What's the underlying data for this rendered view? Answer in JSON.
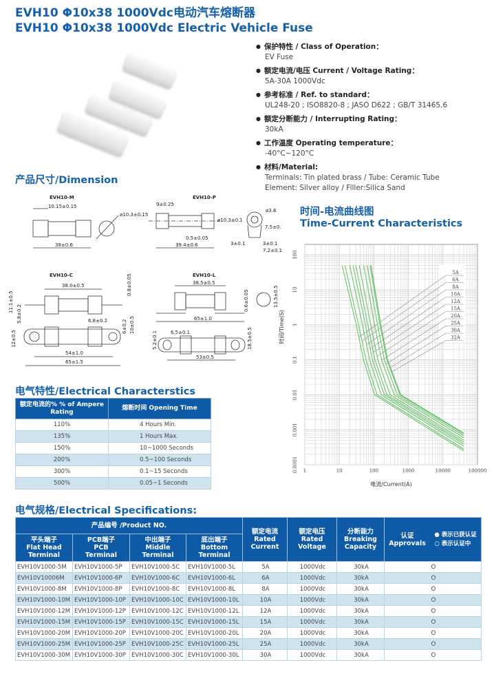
{
  "title": {
    "line1": "EVH10  Φ10x38 1000Vdc电动汽车熔断器",
    "line2": "EVH10  Φ10x38 1000Vdc Electric Vehicle Fuse"
  },
  "specs": [
    {
      "label": "保护特性 / Class of Operation：",
      "value": "EV Fuse"
    },
    {
      "label": "额定电流/电压  Current / Voltage Rating：",
      "value": "5A-30A     1000Vdc"
    },
    {
      "label": "参考标准 / Ref. to standard：",
      "value": "UL248-20 ; ISO8820-8 ; JASO D622 ; GB/T 31465.6"
    },
    {
      "label": "额定分断能力 / Interrupting Rating：",
      "value": "30kA"
    },
    {
      "label": "工作温度 Operating temperature：",
      "value": "-40°C~120°C"
    },
    {
      "label": "材料/Material:",
      "value": "Terminals: Tin plated brass / Tube: Ceramic Tube",
      "value2": "Element: Silver alloy / Filler:Silica Sand"
    }
  ],
  "dimension": {
    "heading": "产品尺寸/Dimension",
    "m": {
      "name": "EVH10-M",
      "d1": "10.15±0.15",
      "d2": "38±0.6",
      "d3": "ø10.3±0.15"
    },
    "p": {
      "name": "EVH10-P",
      "d1": "9±0.25",
      "d2": "ø10.3±0.1",
      "d3": "0.5±0.05",
      "d4": "39.4±0.6",
      "d5": "ø3.6",
      "d6": "7.5±0.1",
      "d7": "3±0.1",
      "d8": "3±0.1",
      "d9": "7.2±0.1"
    },
    "c": {
      "name": "EVH10-C",
      "d1": "38.0±0.5",
      "d2": "0.8±0.05",
      "d3": "11.1±0.5",
      "d4": "5.8±0.2",
      "d5": "6.8±0.2",
      "d6": "6±0.2",
      "d7": "10±0.5",
      "d8": "12±0.5",
      "d9": "54±1.0",
      "d10": "65±1.5"
    },
    "l": {
      "name": "EVH10-L",
      "d1": "38.5±0.5",
      "d2": "0.6±0.05",
      "d3": "65±1.0",
      "d4": "13.5±0.5",
      "d5": "5.2±0.1",
      "d6": "6.5±0.1",
      "d7": "18.5±0.5",
      "d8": "53±0.5"
    }
  },
  "electrical": {
    "heading": "电气特性/Electrical Characterstics",
    "col1": "额定电流的%  % of Ampere Rating",
    "col2": "熔断时间 Opening Time",
    "rows": [
      [
        "110%",
        "4 Hours Min."
      ],
      [
        "135%",
        "1 Hours Max."
      ],
      [
        "150%",
        "10~1000 Seconds"
      ],
      [
        "200%",
        "0.5~100 Seconds"
      ],
      [
        "300%",
        "0.1~15 Seconds"
      ],
      [
        "500%",
        "0.05~1 Seconds"
      ]
    ]
  },
  "chart_data": {
    "type": "line",
    "title": "时间-电流曲线图 Time-Current Characteristics",
    "title_line1": "时间-电流曲线图",
    "title_line2": "Time-Current Characteristics",
    "xlabel": "电流/Current(A)",
    "ylabel": "时间/Time(S)",
    "xscale": "log",
    "yscale": "log",
    "xlim": [
      1,
      100000
    ],
    "ylim": [
      0.0001,
      100
    ],
    "xticks": [
      "1",
      "10",
      "100",
      "1000",
      "10000",
      "100000"
    ],
    "yticks": [
      "100",
      "10",
      "1",
      "0.1",
      "0.01",
      "0.001",
      "0.0001"
    ],
    "grid": true,
    "line_color": "#5cbf5c",
    "series": [
      {
        "name": "5A",
        "points": [
          [
            12,
            50
          ],
          [
            31,
            1
          ],
          [
            50,
            0.1
          ],
          [
            105,
            0.01
          ],
          [
            40000,
            0.00025
          ]
        ]
      },
      {
        "name": "6A",
        "points": [
          [
            14.5,
            50
          ],
          [
            36,
            1
          ],
          [
            59,
            0.1
          ],
          [
            124,
            0.01
          ],
          [
            40000,
            0.00028
          ]
        ]
      },
      {
        "name": "8A",
        "points": [
          [
            20,
            50
          ],
          [
            47,
            1
          ],
          [
            75,
            0.1
          ],
          [
            163,
            0.01
          ],
          [
            40000,
            0.00034
          ]
        ]
      },
      {
        "name": "10A",
        "points": [
          [
            25,
            50
          ],
          [
            57,
            1
          ],
          [
            91,
            0.1
          ],
          [
            201,
            0.01
          ],
          [
            40000,
            0.00039
          ]
        ]
      },
      {
        "name": "12A",
        "points": [
          [
            30,
            50
          ],
          [
            67,
            1
          ],
          [
            107,
            0.1
          ],
          [
            239,
            0.01
          ],
          [
            40000,
            0.00044
          ]
        ]
      },
      {
        "name": "15A",
        "points": [
          [
            38,
            50
          ],
          [
            81,
            1
          ],
          [
            130,
            0.1
          ],
          [
            295,
            0.01
          ],
          [
            40000,
            0.0005
          ]
        ]
      },
      {
        "name": "20A",
        "points": [
          [
            51,
            50
          ],
          [
            105,
            1
          ],
          [
            167,
            0.1
          ],
          [
            387,
            0.01
          ],
          [
            40000,
            0.00059
          ]
        ]
      },
      {
        "name": "25A",
        "points": [
          [
            64,
            50
          ],
          [
            127,
            1
          ],
          [
            202,
            0.1
          ],
          [
            476,
            0.01
          ],
          [
            40000,
            0.00068
          ]
        ]
      },
      {
        "name": "30A",
        "points": [
          [
            78,
            50
          ],
          [
            150,
            1
          ],
          [
            238,
            0.1
          ],
          [
            566,
            0.01
          ],
          [
            40000,
            0.00076
          ]
        ]
      },
      {
        "name": "32A",
        "points": [
          [
            83,
            50
          ],
          [
            160,
            1
          ],
          [
            250,
            0.1
          ],
          [
            600,
            0.01
          ],
          [
            40000,
            0.0008
          ]
        ]
      }
    ]
  },
  "specifications": {
    "heading": "电气规格/Electrical Specifications:",
    "product_no": "产品编号 /Product NO.",
    "cols": [
      "平头端子\nFlat Head\nTerminal",
      "PCB端子\nPCB\nTerminal",
      "中出端子\nMiddle\nTerminal",
      "底出端子\nBottom\nTerminal",
      "额定电流\nRated\nCurrent",
      "额定电压\nRated\nVoltage",
      "分断能力\nBreaking\nCapacity"
    ],
    "approvals": "认证\nApprovals",
    "legend_obtained": "● 表示已获认证",
    "legend_pending": "○ 表示认证中",
    "rows": [
      [
        "EVH10V1000-5M",
        "EVH10V1000-5P",
        "EVH10V1000-5C",
        "EVH10V1000-5L",
        "5A",
        "1000Vdc",
        "30kA",
        "O"
      ],
      [
        "EVH10V10006M",
        "EVH10V1000-6P",
        "EVH10V1000-6C",
        "EVH10V1000-6L",
        "6A",
        "1000Vdc",
        "30kA",
        "O"
      ],
      [
        "EVH10V1000-8M",
        "EVH10V1000-8P",
        "EVH10V1000-8C",
        "EVH10V1000-8L",
        "8A",
        "1000Vdc",
        "30kA",
        "O"
      ],
      [
        "EVH10V1000-10M",
        "EVH10V1000-10P",
        "EVH10V1000-10C",
        "EVH10V1000-10L",
        "10A",
        "1000Vdc",
        "30kA",
        "O"
      ],
      [
        "EVH10V1000-12M",
        "EVH10V1000-12P",
        "EVH10V1000-12C",
        "EVH10V1000-12L",
        "12A",
        "1000Vdc",
        "30kA",
        "O"
      ],
      [
        "EVH10V1000-15M",
        "EVH10V1000-15P",
        "EVH10V1000-15C",
        "EVH10V1000-15L",
        "15A",
        "1000Vdc",
        "30kA",
        "O"
      ],
      [
        "EVH10V1000-20M",
        "EVH10V1000-20P",
        "EVH10V1000-20C",
        "EVH10V1000-20L",
        "20A",
        "1000Vdc",
        "30kA",
        "O"
      ],
      [
        "EVH10V1000-25M",
        "EVH10V1000-25P",
        "EVH10V1000-25C",
        "EVH10V1000-25L",
        "25A",
        "1000Vdc",
        "30kA",
        "O"
      ],
      [
        "EVH10V1000-30M",
        "EVH10V1000-30P",
        "EVH10V1000-30C",
        "EVH10V1000-30L",
        "30A",
        "1000Vdc",
        "30kA",
        "O"
      ]
    ]
  }
}
